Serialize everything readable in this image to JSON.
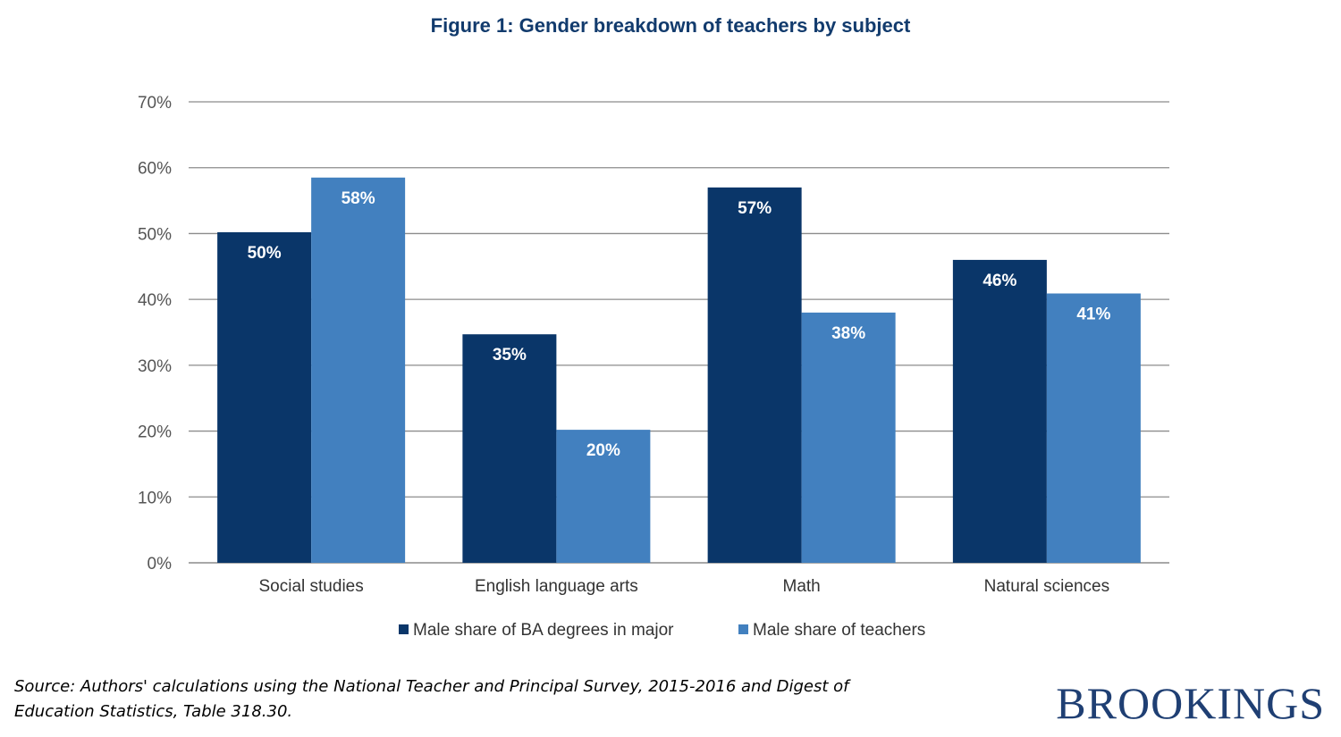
{
  "colors": {
    "series_dark": "#0a3669",
    "series_light": "#4280bf",
    "grid": "#8c8c8c",
    "title": "#123b6d",
    "brand": "#1f3f73"
  },
  "chart_data": {
    "type": "bar",
    "title": "Figure 1: Gender breakdown of teachers by subject",
    "categories": [
      "Social studies",
      "English language arts",
      "Math",
      "Natural sciences"
    ],
    "series": [
      {
        "name": "Male share of BA degrees in major",
        "values": [
          50.2,
          34.7,
          57.0,
          46.0
        ],
        "labels": [
          "50%",
          "35%",
          "57%",
          "46%"
        ]
      },
      {
        "name": "Male share of teachers",
        "values": [
          58.5,
          20.2,
          38.0,
          40.9
        ],
        "labels": [
          "58%",
          "20%",
          "38%",
          "41%"
        ]
      }
    ],
    "ylim": [
      0,
      70
    ],
    "yticks": [
      0,
      10,
      20,
      30,
      40,
      50,
      60,
      70
    ],
    "ytick_labels": [
      "0%",
      "10%",
      "20%",
      "30%",
      "40%",
      "50%",
      "60%",
      "70%"
    ],
    "grid": true,
    "legend_position": "bottom"
  },
  "footer": {
    "source_line1": "Source: Authors' calculations using the National Teacher and Principal Survey, 2015-2016 and Digest of",
    "source_line2": "Education Statistics, Table 318.30.",
    "brand": "BROOKINGS"
  }
}
